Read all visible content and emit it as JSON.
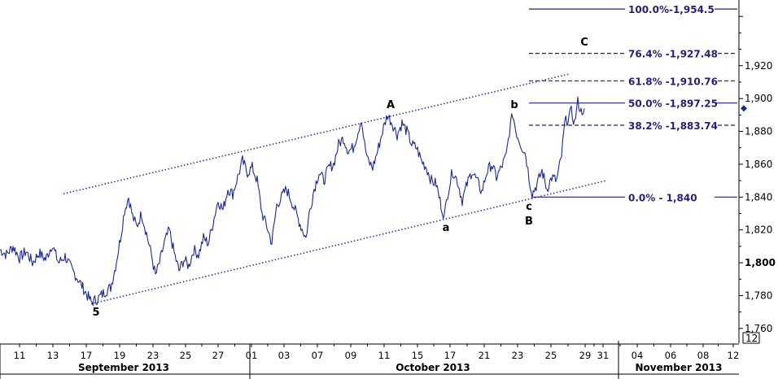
{
  "chart_data": {
    "type": "line",
    "y_axis": {
      "ticks": [
        1760,
        1780,
        1800,
        1820,
        1840,
        1860,
        1880,
        1900,
        1920
      ],
      "tick_labels": [
        "1,760",
        "1,780",
        "1,800",
        "1,820",
        "1,840",
        "1,860",
        "1,880",
        "1,900",
        "1,920"
      ],
      "last_tick_bold": "1,800",
      "range": [
        1751,
        1960
      ]
    },
    "x_axis": {
      "dates": [
        "11",
        "13",
        "17",
        "19",
        "23",
        "25",
        "27",
        "01",
        "03",
        "07",
        "09",
        "11",
        "15",
        "17",
        "21",
        "23",
        "25",
        "29",
        "31",
        "04",
        "06",
        "08",
        "12"
      ],
      "months": [
        "September 2013",
        "October 2013",
        "November 2013"
      ],
      "corner_label": "12"
    },
    "fibonacci": [
      {
        "label": "100.0%-1,954.5",
        "value": 1954.5
      },
      {
        "label": "76.4% -1,927.48",
        "value": 1927.48
      },
      {
        "label": "61.8% -1,910.76",
        "value": 1910.76
      },
      {
        "label": "50.0% -1,897.25",
        "value": 1897.25
      },
      {
        "label": "38.2% -1,883.74",
        "value": 1883.74
      },
      {
        "label": "0.0% - 1,840",
        "value": 1840
      }
    ],
    "wave_labels": [
      "5",
      "A",
      "a",
      "b",
      "c",
      "B",
      "C"
    ],
    "series": [
      {
        "values": [
          [
            0,
            1808
          ],
          [
            8,
            1805
          ],
          [
            16,
            1810
          ],
          [
            24,
            1803
          ],
          [
            32,
            1807
          ],
          [
            40,
            1800
          ],
          [
            48,
            1806
          ],
          [
            56,
            1802
          ],
          [
            64,
            1811
          ],
          [
            72,
            1800
          ],
          [
            80,
            1804
          ],
          [
            88,
            1796
          ],
          [
            96,
            1790
          ],
          [
            104,
            1783
          ],
          [
            112,
            1776
          ],
          [
            120,
            1778
          ],
          [
            128,
            1782
          ],
          [
            136,
            1785
          ],
          [
            142,
            1798
          ],
          [
            148,
            1815
          ],
          [
            153,
            1832
          ],
          [
            158,
            1840
          ],
          [
            163,
            1828
          ],
          [
            168,
            1822
          ],
          [
            174,
            1830
          ],
          [
            180,
            1818
          ],
          [
            186,
            1805
          ],
          [
            191,
            1792
          ],
          [
            196,
            1800
          ],
          [
            202,
            1812
          ],
          [
            208,
            1820
          ],
          [
            214,
            1806
          ],
          [
            220,
            1795
          ],
          [
            226,
            1802
          ],
          [
            232,
            1798
          ],
          [
            238,
            1808
          ],
          [
            244,
            1805
          ],
          [
            250,
            1815
          ],
          [
            256,
            1812
          ],
          [
            262,
            1825
          ],
          [
            268,
            1838
          ],
          [
            274,
            1832
          ],
          [
            280,
            1845
          ],
          [
            286,
            1842
          ],
          [
            292,
            1852
          ],
          [
            298,
            1862
          ],
          [
            304,
            1855
          ],
          [
            310,
            1858
          ],
          [
            316,
            1850
          ],
          [
            322,
            1830
          ],
          [
            328,
            1822
          ],
          [
            334,
            1812
          ],
          [
            340,
            1835
          ],
          [
            346,
            1840
          ],
          [
            352,
            1845
          ],
          [
            358,
            1838
          ],
          [
            364,
            1830
          ],
          [
            370,
            1822
          ],
          [
            376,
            1815
          ],
          [
            380,
            1830
          ],
          [
            386,
            1845
          ],
          [
            392,
            1855
          ],
          [
            398,
            1850
          ],
          [
            404,
            1858
          ],
          [
            410,
            1860
          ],
          [
            416,
            1872
          ],
          [
            422,
            1876
          ],
          [
            428,
            1868
          ],
          [
            434,
            1870
          ],
          [
            440,
            1880
          ],
          [
            444,
            1888
          ],
          [
            448,
            1872
          ],
          [
            452,
            1862
          ],
          [
            458,
            1858
          ],
          [
            464,
            1868
          ],
          [
            470,
            1880
          ],
          [
            476,
            1890
          ],
          [
            482,
            1885
          ],
          [
            488,
            1878
          ],
          [
            494,
            1885
          ],
          [
            500,
            1880
          ],
          [
            506,
            1872
          ],
          [
            512,
            1870
          ],
          [
            518,
            1862
          ],
          [
            524,
            1858
          ],
          [
            530,
            1850
          ],
          [
            536,
            1848
          ],
          [
            542,
            1835
          ],
          [
            546,
            1828
          ],
          [
            550,
            1842
          ],
          [
            556,
            1856
          ],
          [
            562,
            1850
          ],
          [
            568,
            1838
          ],
          [
            574,
            1848
          ],
          [
            580,
            1856
          ],
          [
            586,
            1850
          ],
          [
            592,
            1843
          ],
          [
            598,
            1855
          ],
          [
            604,
            1860
          ],
          [
            610,
            1852
          ],
          [
            616,
            1858
          ],
          [
            622,
            1865
          ],
          [
            626,
            1880
          ],
          [
            630,
            1891
          ],
          [
            634,
            1880
          ],
          [
            640,
            1872
          ],
          [
            646,
            1866
          ],
          [
            650,
            1852
          ],
          [
            654,
            1842
          ],
          [
            660,
            1848
          ],
          [
            666,
            1856
          ],
          [
            672,
            1845
          ],
          [
            678,
            1852
          ],
          [
            684,
            1850
          ],
          [
            690,
            1865
          ],
          [
            694,
            1885
          ],
          [
            698,
            1888
          ],
          [
            702,
            1892
          ],
          [
            706,
            1885
          ],
          [
            710,
            1898
          ],
          [
            714,
            1892
          ],
          [
            718,
            1894
          ]
        ]
      }
    ],
    "channel_lines": {
      "upper": [
        [
          78,
          1842
        ],
        [
          700,
          1915
        ]
      ],
      "lower": [
        [
          112,
          1775
        ],
        [
          745,
          1850
        ]
      ]
    },
    "last_value_marker": 1894,
    "colors": {
      "price": "#1a2a8c",
      "fib": "#2d1a7a",
      "channel": "#3a2ea0",
      "axis": "#000000"
    }
  }
}
